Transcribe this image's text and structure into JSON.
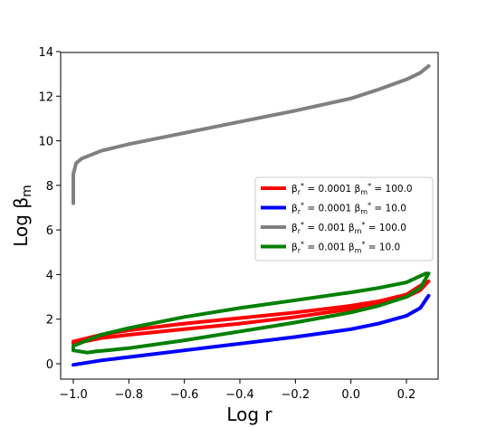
{
  "chart_data": {
    "type": "line",
    "xlabel": "Log r",
    "ylabel_base": "Log β",
    "ylabel_sub": "m",
    "xlim": [
      -1.06,
      1.0
    ],
    "ylim": [
      -0.6,
      14
    ],
    "xticks": [
      -1.0,
      -0.8,
      -0.6,
      -0.4,
      -0.2,
      0.0,
      0.2
    ],
    "xtick_labels": [
      "−1.0",
      "−0.8",
      "−0.6",
      "−0.4",
      "−0.2",
      "0.0",
      "0.2"
    ],
    "yticks": [
      0,
      2,
      4,
      6,
      8,
      10,
      12,
      14
    ],
    "ytick_labels": [
      "0",
      "2",
      "4",
      "6",
      "8",
      "10",
      "12",
      "14"
    ],
    "legend_position": "center-right",
    "series": [
      {
        "name": "β_r* = 0.0001 β_m* = 100.0",
        "legend": {
          "br": "0.0001",
          "bm": "100.0"
        },
        "color": "#ff0000",
        "x": [
          -1.0,
          -0.9,
          -0.8,
          -0.6,
          -0.4,
          -0.2,
          0.0,
          0.1,
          0.2,
          0.25,
          0.28,
          0.25,
          0.2,
          0.1,
          0.0,
          -0.2,
          -0.4,
          -0.6,
          -0.8,
          -0.9,
          -1.0,
          -1.0
        ],
        "y": [
          0.9,
          1.15,
          1.3,
          1.55,
          1.8,
          2.1,
          2.45,
          2.7,
          3.0,
          3.3,
          3.7,
          3.5,
          3.1,
          2.8,
          2.6,
          2.3,
          2.05,
          1.8,
          1.5,
          1.3,
          1.0,
          0.9
        ]
      },
      {
        "name": "β_r* = 0.0001 β_m* = 10.0",
        "legend": {
          "br": "0.0001",
          "bm": "10.0"
        },
        "color": "#0000ff",
        "x": [
          -1.0,
          -0.9,
          -0.8,
          -0.6,
          -0.4,
          -0.2,
          0.0,
          0.1,
          0.2,
          0.25,
          0.28
        ],
        "y": [
          -0.05,
          0.15,
          0.3,
          0.6,
          0.9,
          1.2,
          1.55,
          1.8,
          2.15,
          2.5,
          3.05
        ]
      },
      {
        "name": "β_r* = 0.001 β_m* = 100.0",
        "legend": {
          "br": "0.001",
          "bm": "100.0"
        },
        "color": "#808080",
        "x": [
          -1.0,
          -1.0,
          -0.99,
          -0.97,
          -0.9,
          -0.8,
          -0.6,
          -0.4,
          -0.2,
          0.0,
          0.1,
          0.2,
          0.25,
          0.28
        ],
        "y": [
          7.2,
          8.5,
          9.0,
          9.2,
          9.55,
          9.85,
          10.35,
          10.85,
          11.35,
          11.9,
          12.3,
          12.75,
          13.05,
          13.35
        ]
      },
      {
        "name": "β_r* = 0.001 β_m* = 10.0",
        "legend": {
          "br": "0.001",
          "bm": "10.0"
        },
        "color": "#008000",
        "x": [
          -1.0,
          -0.95,
          -0.92,
          -0.88,
          -0.8,
          -0.6,
          -0.4,
          -0.2,
          0.0,
          0.1,
          0.2,
          0.25,
          0.28,
          0.27,
          0.2,
          0.1,
          0.0,
          -0.2,
          -0.4,
          -0.6,
          -0.8,
          -0.9,
          -0.95,
          -1.0,
          -1.0
        ],
        "y": [
          0.6,
          0.5,
          0.55,
          0.6,
          0.7,
          1.05,
          1.45,
          1.85,
          2.3,
          2.6,
          3.0,
          3.4,
          4.05,
          4.05,
          3.65,
          3.4,
          3.2,
          2.85,
          2.5,
          2.1,
          1.6,
          1.3,
          1.05,
          0.8,
          0.6
        ]
      }
    ]
  }
}
